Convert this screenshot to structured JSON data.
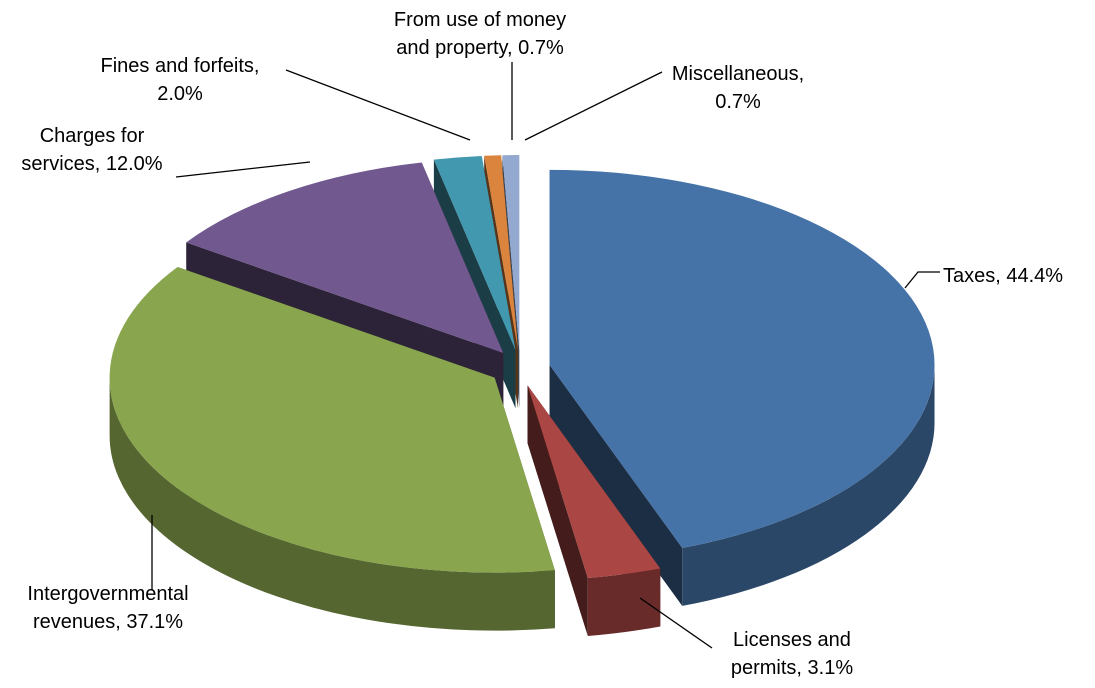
{
  "chart_data": {
    "type": "pie3d",
    "categories": [
      "Taxes",
      "Licenses and permits",
      "Intergovernmental revenues",
      "Charges for services",
      "Fines and forfeits",
      "From use of money and property",
      "Miscellaneous"
    ],
    "values": [
      44.4,
      3.1,
      37.1,
      12.0,
      2.0,
      0.7,
      0.7
    ],
    "value_labels": [
      "Taxes, 44.4%",
      "Licenses and\npermits, 3.1%",
      "Intergovernmental\nrevenues, 37.1%",
      "Charges for\nservices, 12.0%",
      "Fines and forfeits,\n2.0%",
      "From use of money\nand property, 0.7%",
      "Miscellaneous,\n0.7%"
    ],
    "colors": [
      "#4572a7",
      "#aa4643",
      "#89a54e",
      "#71588f",
      "#4198af",
      "#db843d",
      "#93a9cf"
    ]
  }
}
